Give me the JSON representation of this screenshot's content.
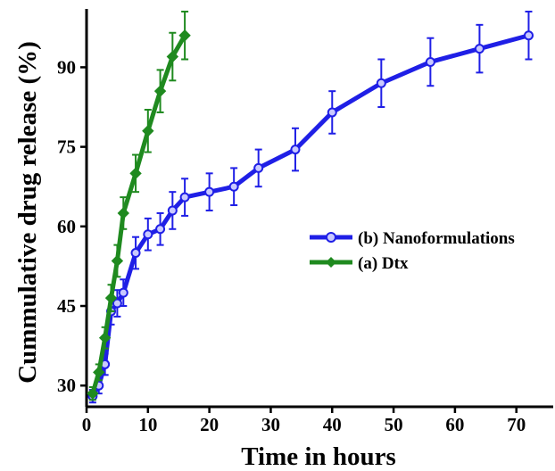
{
  "chart_data": {
    "type": "line",
    "title": "",
    "xlabel": "Time in hours",
    "ylabel": "Cummulative drug release (%)",
    "xlim": [
      0,
      76
    ],
    "ylim": [
      26,
      101
    ],
    "x_ticks": [
      0,
      10,
      20,
      30,
      40,
      50,
      60,
      70
    ],
    "y_ticks": [
      30,
      45,
      60,
      75,
      90
    ],
    "legend_position": "center-right",
    "series": [
      {
        "name": "(b) Nanoformulations",
        "color": "#1f1fe6",
        "marker": "circle",
        "x": [
          1,
          2,
          3,
          4,
          5,
          6,
          8,
          10,
          12,
          14,
          16,
          20,
          24,
          28,
          34,
          40,
          48,
          56,
          64,
          72
        ],
        "y": [
          28,
          30,
          34,
          44,
          45.5,
          47.5,
          55,
          58.5,
          59.5,
          63,
          65.5,
          66.5,
          67.5,
          71,
          74.5,
          81.5,
          87,
          91,
          93.5,
          96
        ],
        "err": [
          1.2,
          1.5,
          2,
          2.5,
          2.5,
          2.5,
          3,
          3,
          3,
          3.5,
          3.5,
          3.5,
          3.5,
          3.5,
          4,
          4,
          4.5,
          4.5,
          4.5,
          4.5
        ]
      },
      {
        "name": "(a) Dtx",
        "color": "#1f8a1f",
        "marker": "diamond",
        "x": [
          1,
          2,
          3,
          4,
          5,
          6,
          8,
          10,
          12,
          14,
          16
        ],
        "y": [
          28.5,
          32.5,
          39,
          46.5,
          53.5,
          62.5,
          70,
          78,
          85.5,
          92,
          96
        ],
        "err": [
          1.2,
          1.5,
          2,
          2.5,
          3,
          3,
          3.5,
          4,
          4,
          4.5,
          4.5
        ]
      }
    ]
  }
}
